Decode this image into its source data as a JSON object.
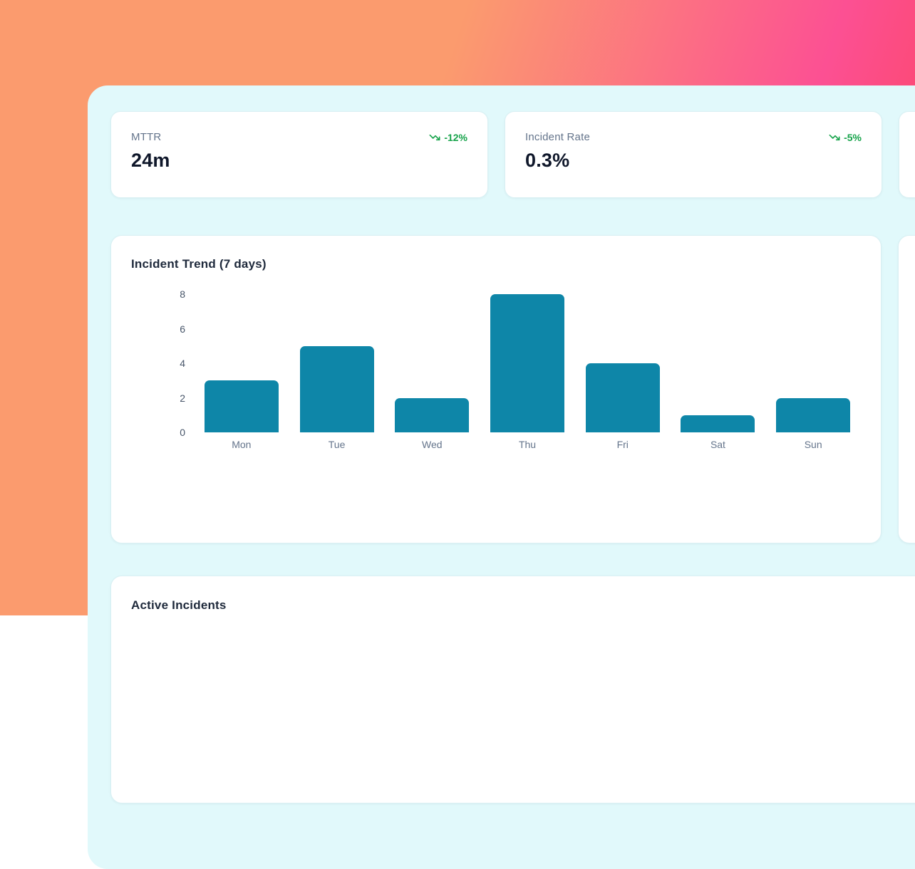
{
  "theme": {
    "gradient_colors": [
      "#fb9b6e",
      "#fc5093",
      "#fb4152"
    ],
    "panel_bg": "#e1f9fb",
    "card_bg": "#ffffff",
    "label_color": "#64748b",
    "value_color": "#0f172a",
    "trend_color": "#16a34a",
    "bar_color": "#0e86a8"
  },
  "stats": [
    {
      "label": "MTTR",
      "value": "24m",
      "trend": "-12%",
      "trend_direction": "down"
    },
    {
      "label": "Incident Rate",
      "value": "0.3%",
      "trend": "-5%",
      "trend_direction": "down"
    }
  ],
  "chart_card": {
    "title": "Incident Trend (7 days)"
  },
  "chart_data": {
    "type": "bar",
    "title": "Incident Trend (7 days)",
    "categories": [
      "Mon",
      "Tue",
      "Wed",
      "Thu",
      "Fri",
      "Sat",
      "Sun"
    ],
    "values": [
      3,
      5,
      2,
      8,
      4,
      1,
      2
    ],
    "xlabel": "",
    "ylabel": "",
    "ylim": [
      0,
      8
    ],
    "yticks": [
      0,
      2,
      4,
      6,
      8
    ],
    "grid": false,
    "legend": false,
    "bar_color": "#0e86a8"
  },
  "incidents_card": {
    "title": "Active Incidents"
  }
}
